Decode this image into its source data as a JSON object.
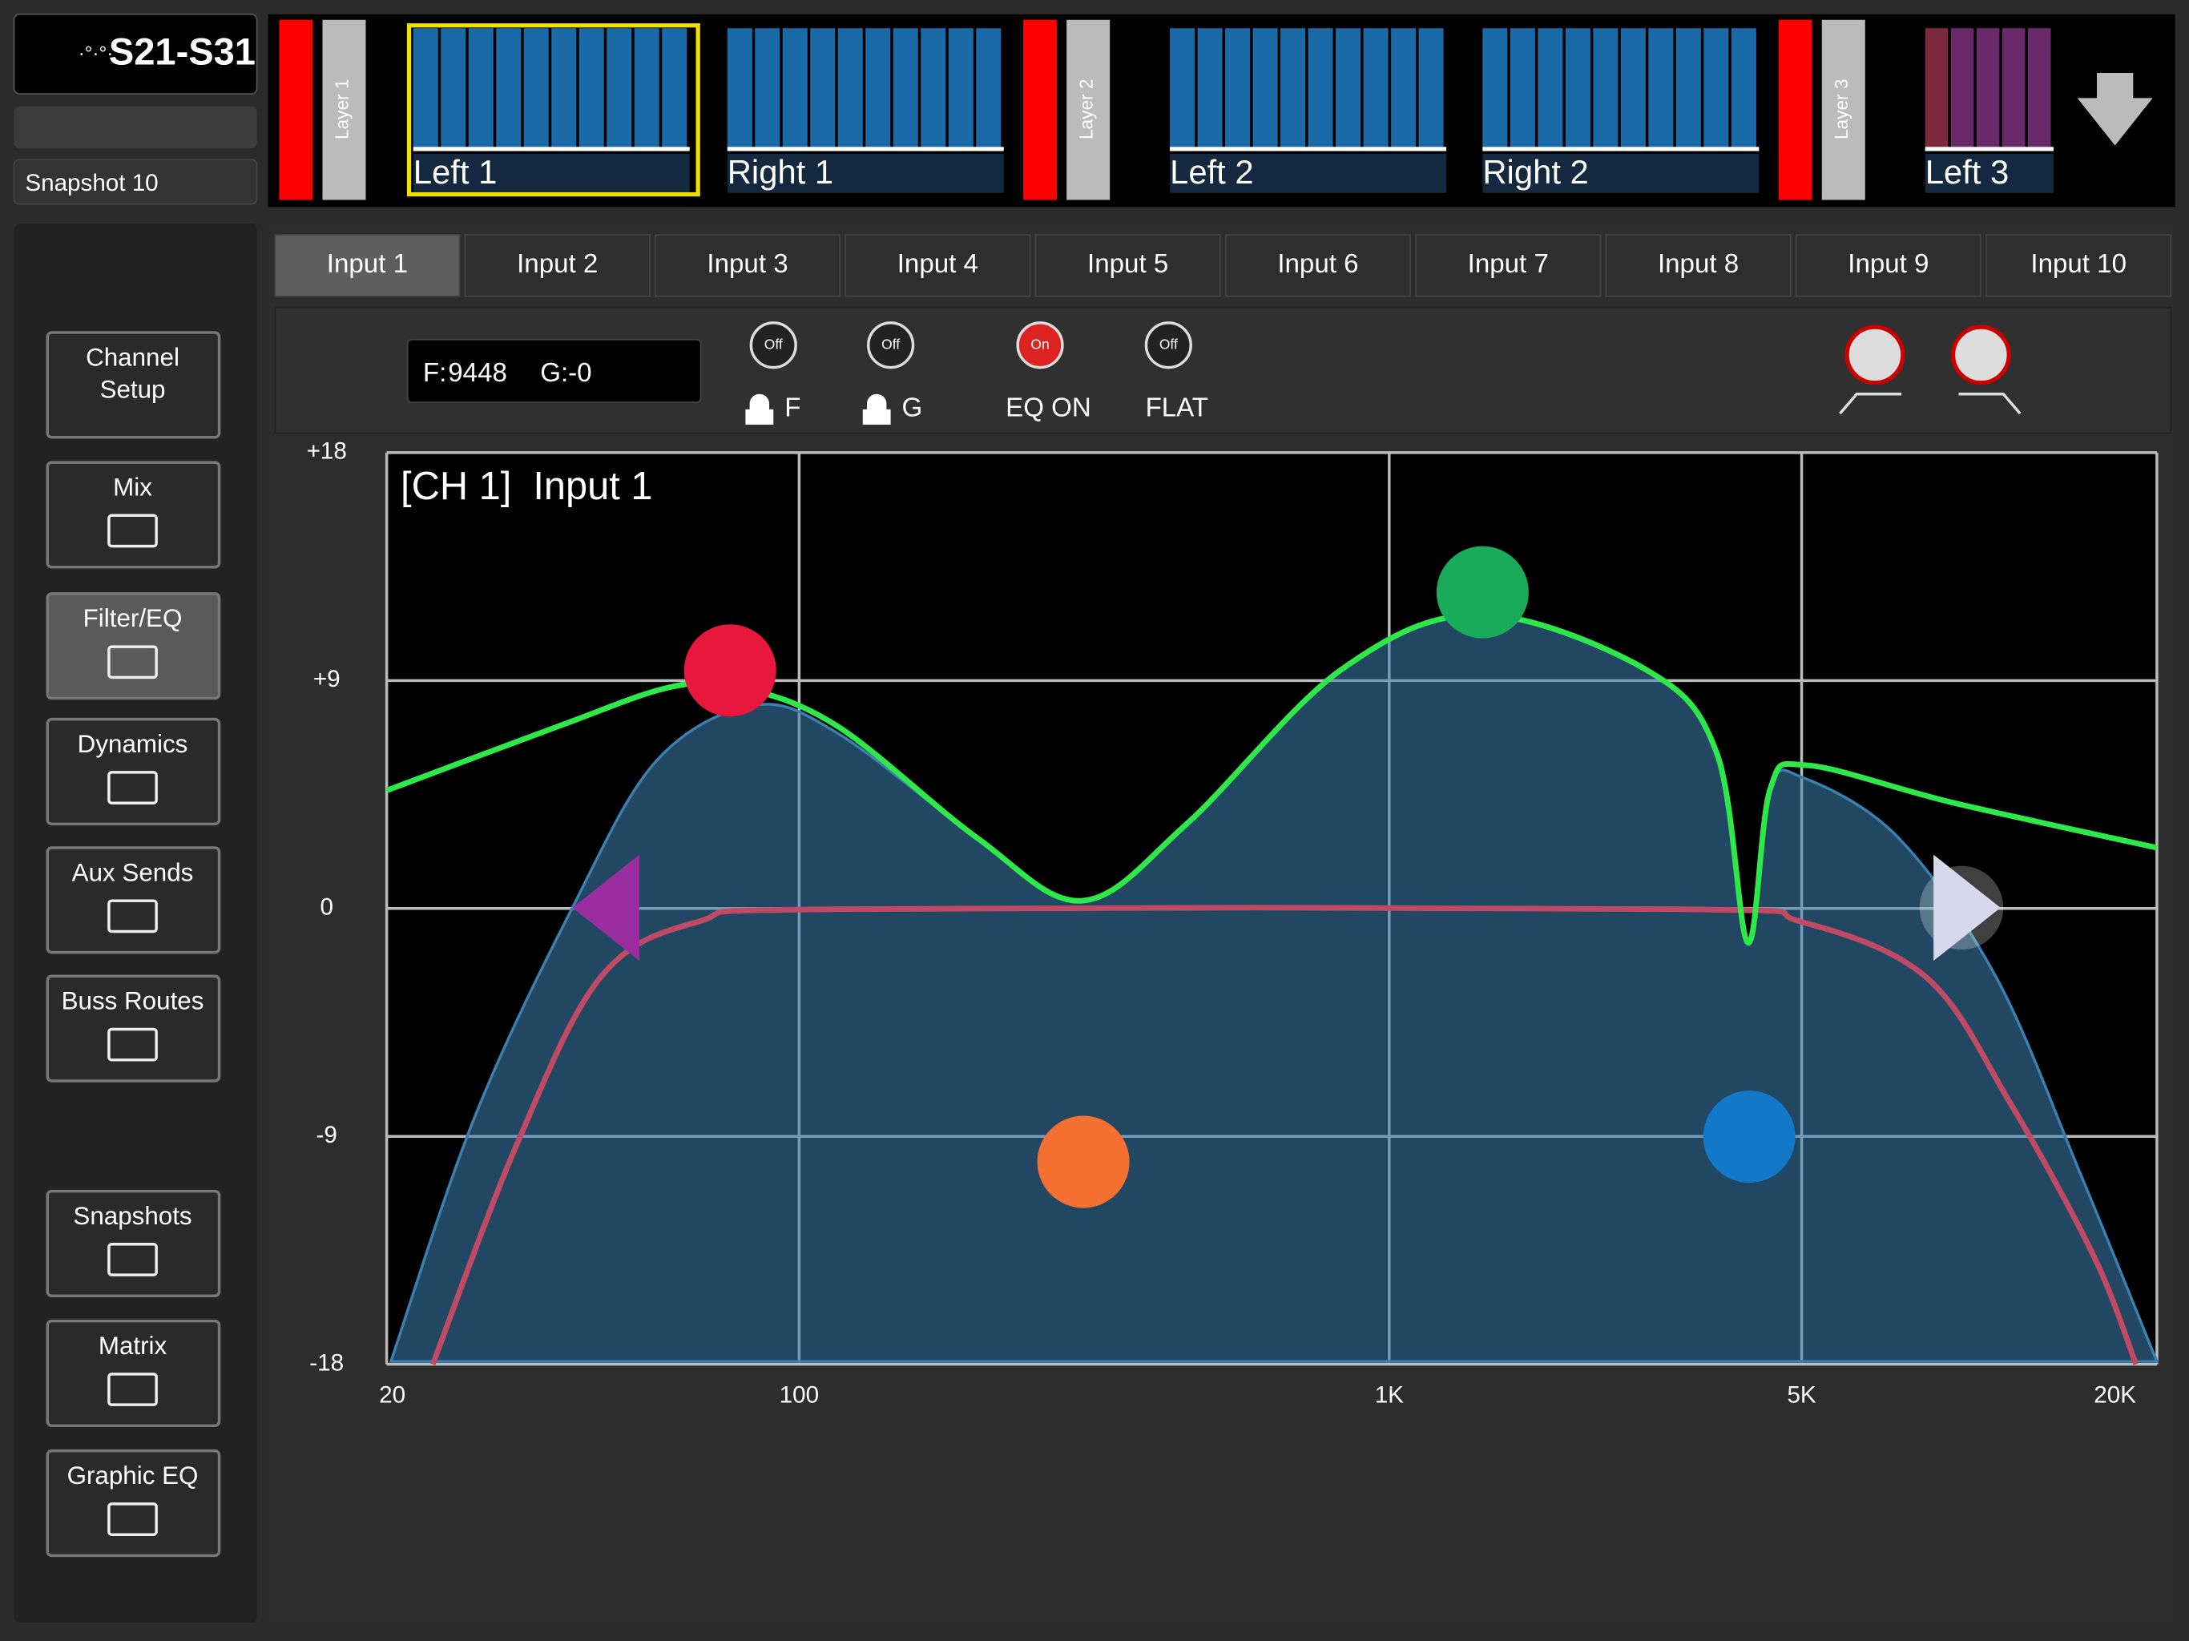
{
  "header": {
    "console": "S21-S31",
    "snapshot": "Snapshot 10"
  },
  "layers": [
    {
      "label": "Layer 1",
      "strips": [
        "Left 1",
        "Right 1"
      ]
    },
    {
      "label": "Layer 2",
      "strips": [
        "Left 2",
        "Right 2"
      ]
    },
    {
      "label": "Layer 3",
      "strips": [
        "Left 3"
      ]
    }
  ],
  "tabs": [
    "Input 1",
    "Input 2",
    "Input 3",
    "Input 4",
    "Input 5",
    "Input 6",
    "Input 7",
    "Input 8",
    "Input 9",
    "Input 10"
  ],
  "controls": {
    "f_label": "F:",
    "f_value": "9448",
    "g_label": "G:",
    "g_value": "-0",
    "toggles": [
      {
        "state": "Off",
        "label": "F"
      },
      {
        "state": "Off",
        "label": "G"
      },
      {
        "state": "On",
        "label": "EQ ON"
      },
      {
        "state": "Off",
        "label": "FLAT"
      }
    ]
  },
  "sidebar": [
    {
      "lines": [
        "Channel",
        "Setup"
      ]
    },
    {
      "lines": [
        "Mix"
      ]
    },
    {
      "lines": [
        "Filter/EQ"
      ]
    },
    {
      "lines": [
        "Dynamics"
      ]
    },
    {
      "lines": [
        "Aux Sends"
      ]
    },
    {
      "lines": [
        "Buss Routes"
      ]
    },
    {
      "lines": [
        "Snapshots"
      ]
    },
    {
      "lines": [
        "Matrix"
      ]
    },
    {
      "lines": [
        "Graphic EQ"
      ]
    }
  ],
  "eq": {
    "title": "[CH 1]  Input 1",
    "x_scale": "log",
    "grid": true,
    "xlim": [
      20,
      20000
    ],
    "ylim": [
      -18,
      18
    ],
    "xticks": [
      20,
      100,
      {
        "value": 1000,
        "label": "1K"
      },
      {
        "value": 5000,
        "label": "5K"
      },
      {
        "value": 20000,
        "label": "20K"
      }
    ],
    "yticks": [
      {
        "value": 18,
        "label": "+18"
      },
      {
        "value": 9,
        "label": "+9"
      },
      0,
      -9,
      -18
    ]
  }
}
